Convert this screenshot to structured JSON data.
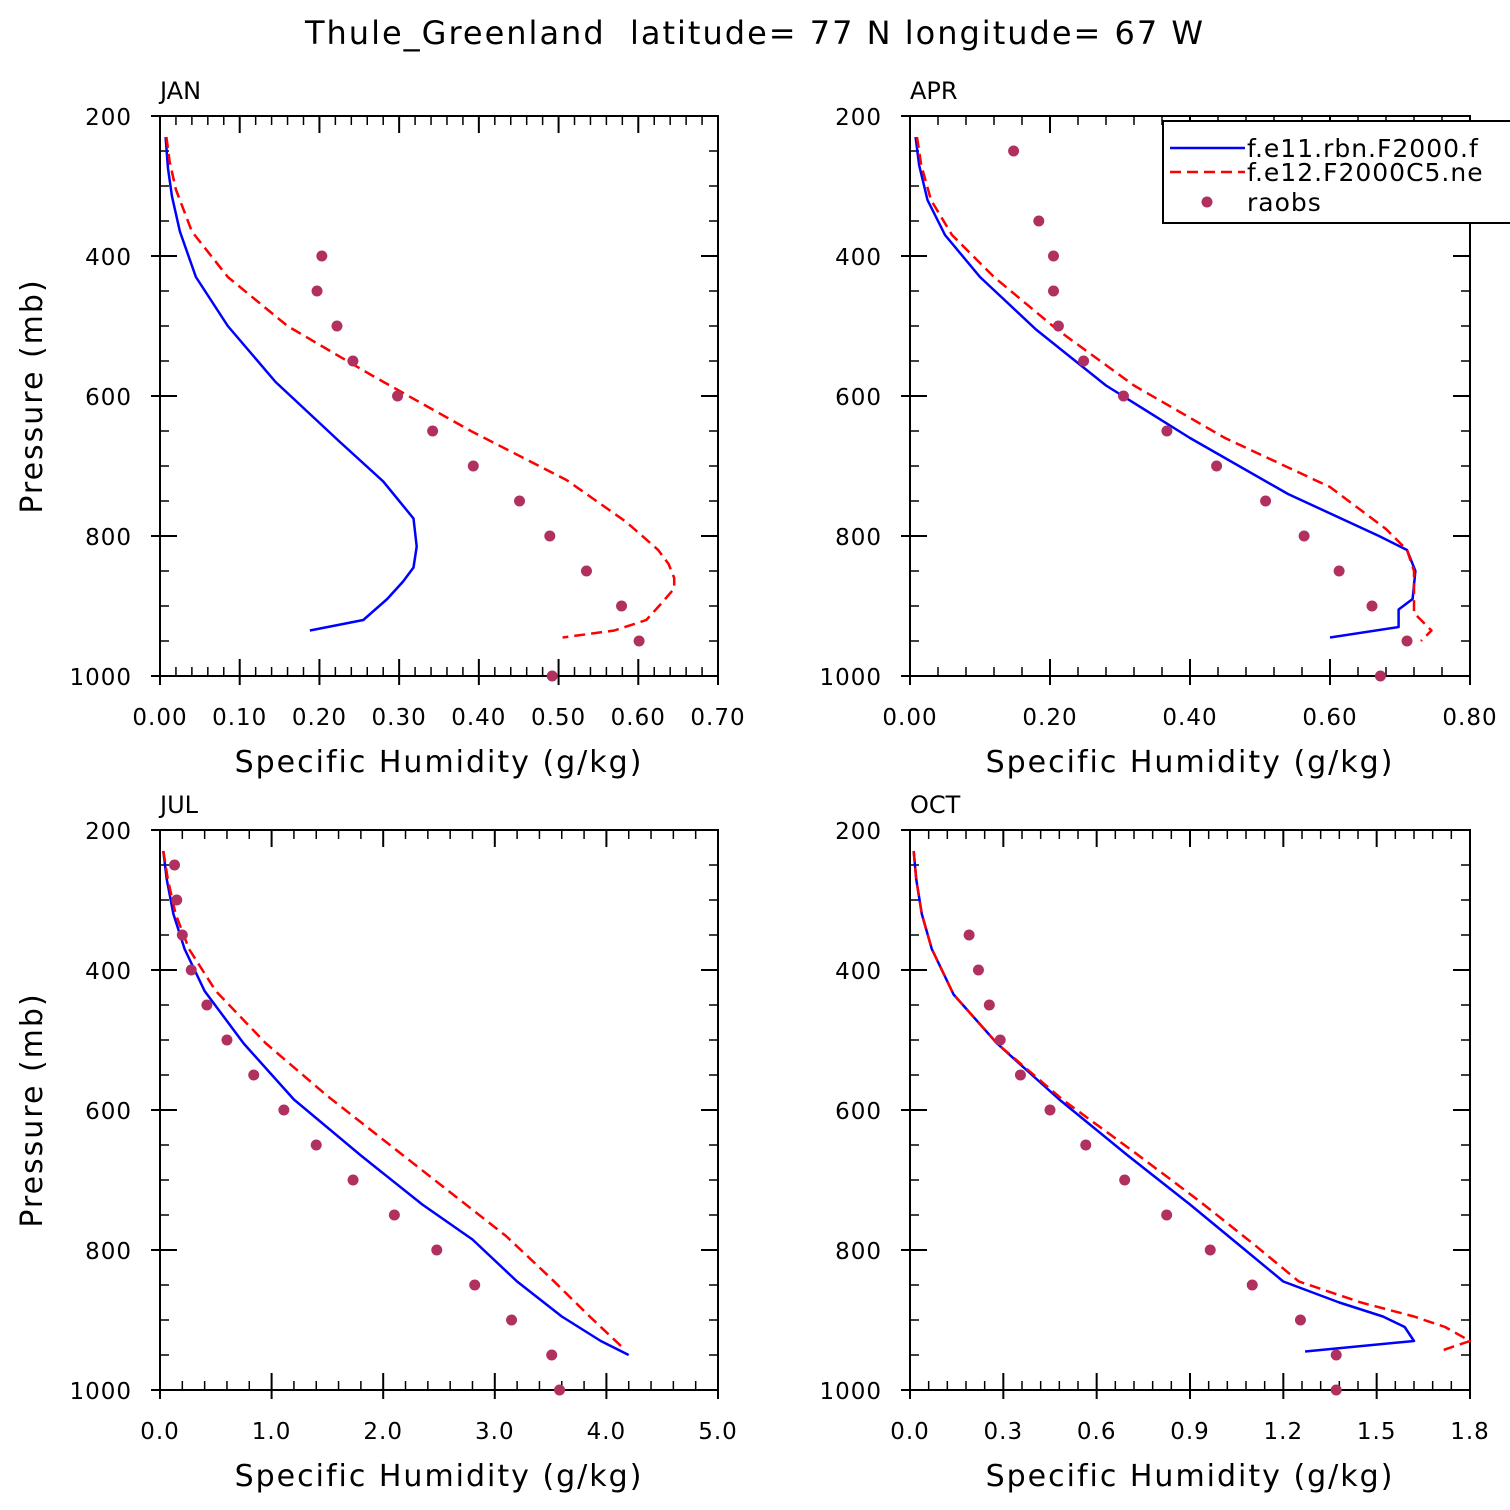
{
  "figure": {
    "title": "Thule_Greenland  latitude= 77 N longitude= 67 W"
  },
  "colors": {
    "model1": "#0000ff",
    "model2": "#ff0000",
    "obs": "#b03060",
    "frame": "#000000"
  },
  "legend": {
    "entries": [
      {
        "label": "f.e11.rbn.F2000.f",
        "style": "solid",
        "color": "#0000ff"
      },
      {
        "label": "f.e12.F2000C5.ne",
        "style": "dashed",
        "color": "#ff0000"
      },
      {
        "label": "raobs",
        "style": "dot",
        "color": "#b03060"
      }
    ]
  },
  "chart_data": [
    {
      "type": "line",
      "panel": "JAN",
      "xlabel": "Specific Humidity (g/kg)",
      "ylabel": "Pressure (mb)",
      "xlim": [
        0,
        0.7
      ],
      "ylim": [
        1000,
        200
      ],
      "y_reversed": true,
      "x_ticks": [
        0,
        0.1,
        0.2,
        0.3,
        0.4,
        0.5,
        0.6,
        0.7
      ],
      "x_tick_labels": [
        "0.00",
        "0.10",
        "0.20",
        "0.30",
        "0.40",
        "0.50",
        "0.60",
        "0.70"
      ],
      "x_minor_step": 0.02,
      "y_ticks": [
        200,
        400,
        600,
        800,
        1000
      ],
      "y_tick_labels": [
        "200",
        "400",
        "600",
        "800",
        "1000"
      ],
      "series": [
        {
          "name": "f.e11.rbn.F2000.f",
          "style": "solid",
          "x": [
            0.007,
            0.01,
            0.015,
            0.025,
            0.045,
            0.085,
            0.145,
            0.225,
            0.28,
            0.318,
            0.322,
            0.318,
            0.305,
            0.285,
            0.255,
            0.188
          ],
          "y": [
            230,
            275,
            315,
            365,
            430,
            500,
            580,
            665,
            722,
            775,
            815,
            845,
            865,
            890,
            920,
            935
          ]
        },
        {
          "name": "f.e12.F2000C5.ne",
          "style": "dashed",
          "x": [
            0.008,
            0.012,
            0.02,
            0.04,
            0.085,
            0.16,
            0.265,
            0.39,
            0.51,
            0.585,
            0.625,
            0.638,
            0.645,
            0.645,
            0.63,
            0.61,
            0.57,
            0.505
          ],
          "y": [
            230,
            265,
            305,
            365,
            430,
            500,
            570,
            650,
            720,
            780,
            820,
            840,
            860,
            875,
            895,
            920,
            935,
            945
          ]
        },
        {
          "name": "raobs",
          "style": "dot",
          "x": [
            0.203,
            0.197,
            0.222,
            0.242,
            0.298,
            0.342,
            0.393,
            0.451,
            0.489,
            0.535,
            0.579,
            0.601,
            0.492
          ],
          "y": [
            400,
            450,
            500,
            550,
            600,
            650,
            700,
            750,
            800,
            850,
            900,
            950,
            1000
          ]
        }
      ]
    },
    {
      "type": "line",
      "panel": "APR",
      "xlabel": "Specific Humidity (g/kg)",
      "ylabel": "",
      "xlim": [
        0,
        0.8
      ],
      "ylim": [
        1000,
        200
      ],
      "y_reversed": true,
      "x_ticks": [
        0,
        0.2,
        0.4,
        0.6,
        0.8
      ],
      "x_tick_labels": [
        "0.00",
        "0.20",
        "0.40",
        "0.60",
        "0.80"
      ],
      "x_minor_step": 0.04,
      "y_ticks": [
        200,
        400,
        600,
        800,
        1000
      ],
      "y_tick_labels": [
        "200",
        "400",
        "600",
        "800",
        "1000"
      ],
      "series": [
        {
          "name": "f.e11.rbn.F2000.f",
          "style": "solid",
          "x": [
            0.008,
            0.013,
            0.025,
            0.05,
            0.1,
            0.18,
            0.28,
            0.4,
            0.54,
            0.67,
            0.71,
            0.722,
            0.718,
            0.698,
            0.698,
            0.6
          ],
          "y": [
            230,
            270,
            320,
            370,
            430,
            505,
            585,
            660,
            740,
            800,
            820,
            850,
            890,
            905,
            930,
            945
          ]
        },
        {
          "name": "f.e12.F2000C5.ne",
          "style": "dashed",
          "x": [
            0.01,
            0.016,
            0.03,
            0.06,
            0.12,
            0.21,
            0.32,
            0.45,
            0.6,
            0.68,
            0.71,
            0.72,
            0.72,
            0.745,
            0.73
          ],
          "y": [
            230,
            270,
            320,
            370,
            430,
            505,
            585,
            660,
            730,
            790,
            820,
            850,
            910,
            935,
            950
          ]
        },
        {
          "name": "raobs",
          "style": "dot",
          "x": [
            0.148,
            0.184,
            0.205,
            0.205,
            0.212,
            0.248,
            0.305,
            0.367,
            0.438,
            0.508,
            0.563,
            0.613,
            0.66,
            0.71,
            0.672
          ],
          "y": [
            250,
            350,
            400,
            450,
            500,
            550,
            600,
            650,
            700,
            750,
            800,
            850,
            900,
            950,
            1000
          ]
        }
      ]
    },
    {
      "type": "line",
      "panel": "JUL",
      "xlabel": "Specific Humidity (g/kg)",
      "ylabel": "Pressure (mb)",
      "xlim": [
        0,
        5.0
      ],
      "ylim": [
        1000,
        200
      ],
      "y_reversed": true,
      "x_ticks": [
        0,
        1,
        2,
        3,
        4,
        5
      ],
      "x_tick_labels": [
        "0.0",
        "1.0",
        "2.0",
        "3.0",
        "4.0",
        "5.0"
      ],
      "x_minor_step": 0.2,
      "y_ticks": [
        200,
        400,
        600,
        800,
        1000
      ],
      "y_tick_labels": [
        "200",
        "400",
        "600",
        "800",
        "1000"
      ],
      "series": [
        {
          "name": "f.e11.rbn.F2000.f",
          "style": "solid",
          "x": [
            0.03,
            0.06,
            0.12,
            0.22,
            0.4,
            0.75,
            1.2,
            1.8,
            2.35,
            2.8,
            3.2,
            3.6,
            3.95,
            4.2
          ],
          "y": [
            230,
            270,
            320,
            370,
            430,
            505,
            585,
            665,
            735,
            785,
            845,
            895,
            930,
            950
          ]
        },
        {
          "name": "f.e12.F2000C5.ne",
          "style": "dashed",
          "x": [
            0.03,
            0.07,
            0.14,
            0.26,
            0.5,
            0.95,
            1.5,
            2.1,
            2.62,
            3.1,
            3.5,
            3.85,
            4.15
          ],
          "y": [
            230,
            270,
            320,
            370,
            430,
            505,
            580,
            655,
            720,
            780,
            840,
            895,
            940
          ]
        },
        {
          "name": "raobs",
          "style": "dot",
          "x": [
            0.13,
            0.15,
            0.2,
            0.28,
            0.42,
            0.6,
            0.84,
            1.11,
            1.4,
            1.73,
            2.1,
            2.48,
            2.82,
            3.15,
            3.51,
            3.58
          ],
          "y": [
            250,
            300,
            350,
            400,
            450,
            500,
            550,
            600,
            650,
            700,
            750,
            800,
            850,
            900,
            950,
            1000
          ]
        }
      ]
    },
    {
      "type": "line",
      "panel": "OCT",
      "xlabel": "Specific Humidity (g/kg)",
      "ylabel": "",
      "xlim": [
        0,
        1.8
      ],
      "ylim": [
        1000,
        200
      ],
      "y_reversed": true,
      "x_ticks": [
        0,
        0.3,
        0.6,
        0.9,
        1.2,
        1.5,
        1.8
      ],
      "x_tick_labels": [
        "0.0",
        "0.3",
        "0.6",
        "0.9",
        "1.2",
        "1.5",
        "1.8"
      ],
      "x_minor_step": 0.06,
      "y_ticks": [
        200,
        400,
        600,
        800,
        1000
      ],
      "y_tick_labels": [
        "200",
        "400",
        "600",
        "800",
        "1000"
      ],
      "series": [
        {
          "name": "f.e11.rbn.F2000.f",
          "style": "solid",
          "x": [
            0.012,
            0.02,
            0.038,
            0.07,
            0.14,
            0.28,
            0.48,
            0.7,
            0.9,
            1.05,
            1.2,
            1.38,
            1.52,
            1.59,
            1.62,
            1.27
          ],
          "y": [
            230,
            270,
            320,
            370,
            435,
            505,
            585,
            665,
            735,
            790,
            845,
            875,
            895,
            910,
            930,
            945
          ]
        },
        {
          "name": "f.e12.F2000C5.ne",
          "style": "dashed",
          "x": [
            0.012,
            0.02,
            0.038,
            0.07,
            0.14,
            0.28,
            0.49,
            0.72,
            0.93,
            1.1,
            1.25,
            1.45,
            1.62,
            1.72,
            1.8,
            1.7
          ],
          "y": [
            230,
            270,
            320,
            370,
            435,
            505,
            585,
            660,
            730,
            790,
            845,
            875,
            895,
            910,
            930,
            945
          ]
        },
        {
          "name": "raobs",
          "style": "dot",
          "x": [
            0.19,
            0.22,
            0.255,
            0.29,
            0.355,
            0.45,
            0.565,
            0.69,
            0.825,
            0.965,
            1.1,
            1.255,
            1.37,
            1.37
          ],
          "y": [
            350,
            400,
            450,
            500,
            550,
            600,
            650,
            700,
            750,
            800,
            850,
            900,
            950,
            1000
          ]
        }
      ]
    }
  ]
}
